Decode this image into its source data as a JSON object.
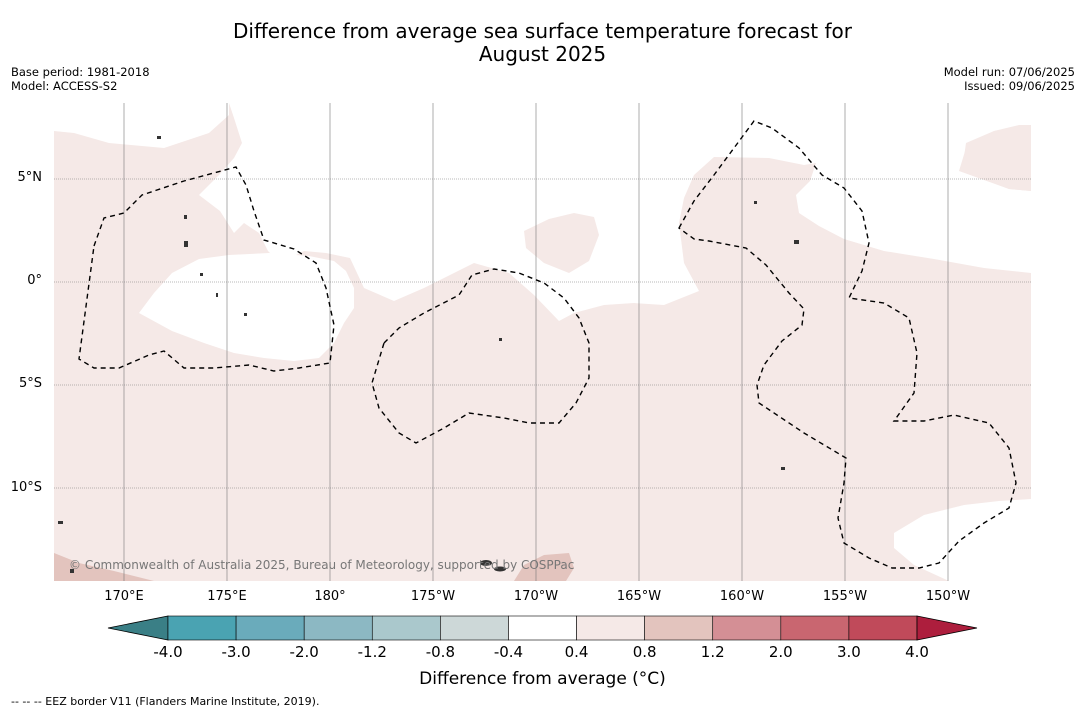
{
  "title_line1": "Difference from average sea surface temperature forecast for",
  "title_line2": "August 2025",
  "meta_left": {
    "base_period": "Base period: 1981-2018",
    "model": "Model: ACCESS-S2"
  },
  "meta_right": {
    "model_run": "Model run: 07/06/2025",
    "issued": "Issued: 09/06/2025"
  },
  "lat_labels": [
    "5°N",
    "0°",
    "5°S",
    "10°S"
  ],
  "lon_labels": [
    "170°E",
    "175°E",
    "180°",
    "175°W",
    "170°W",
    "165°W",
    "160°W",
    "155°W",
    "150°W"
  ],
  "colorbar": {
    "title": "Difference from average (°C)",
    "tick_labels": [
      "-4.0",
      "-3.0",
      "-2.0",
      "-1.2",
      "-0.8",
      "-0.4",
      "0.4",
      "0.8",
      "1.2",
      "2.0",
      "3.0",
      "4.0"
    ],
    "colors": [
      "#3a7f86",
      "#4aa3b2",
      "#6aabbb",
      "#8cb8c3",
      "#aac8cc",
      "#cdd8d8",
      "#ffffff",
      "#f5e9e7",
      "#e3c4be",
      "#d48f95",
      "#c96670",
      "#c04a5a",
      "#ad1e3d"
    ]
  },
  "fill_colors": {
    "anomaly_04_08": "#f5e9e7",
    "anomaly_08_12": "#e3c4be",
    "land": "#555555"
  },
  "copyright": "© Commonwealth of Australia 2025, Bureau of Meteorology, supported by COSPPac",
  "footnote": "--  --  -- EEZ border V11 (Flanders Marine Institute, 2019)."
}
